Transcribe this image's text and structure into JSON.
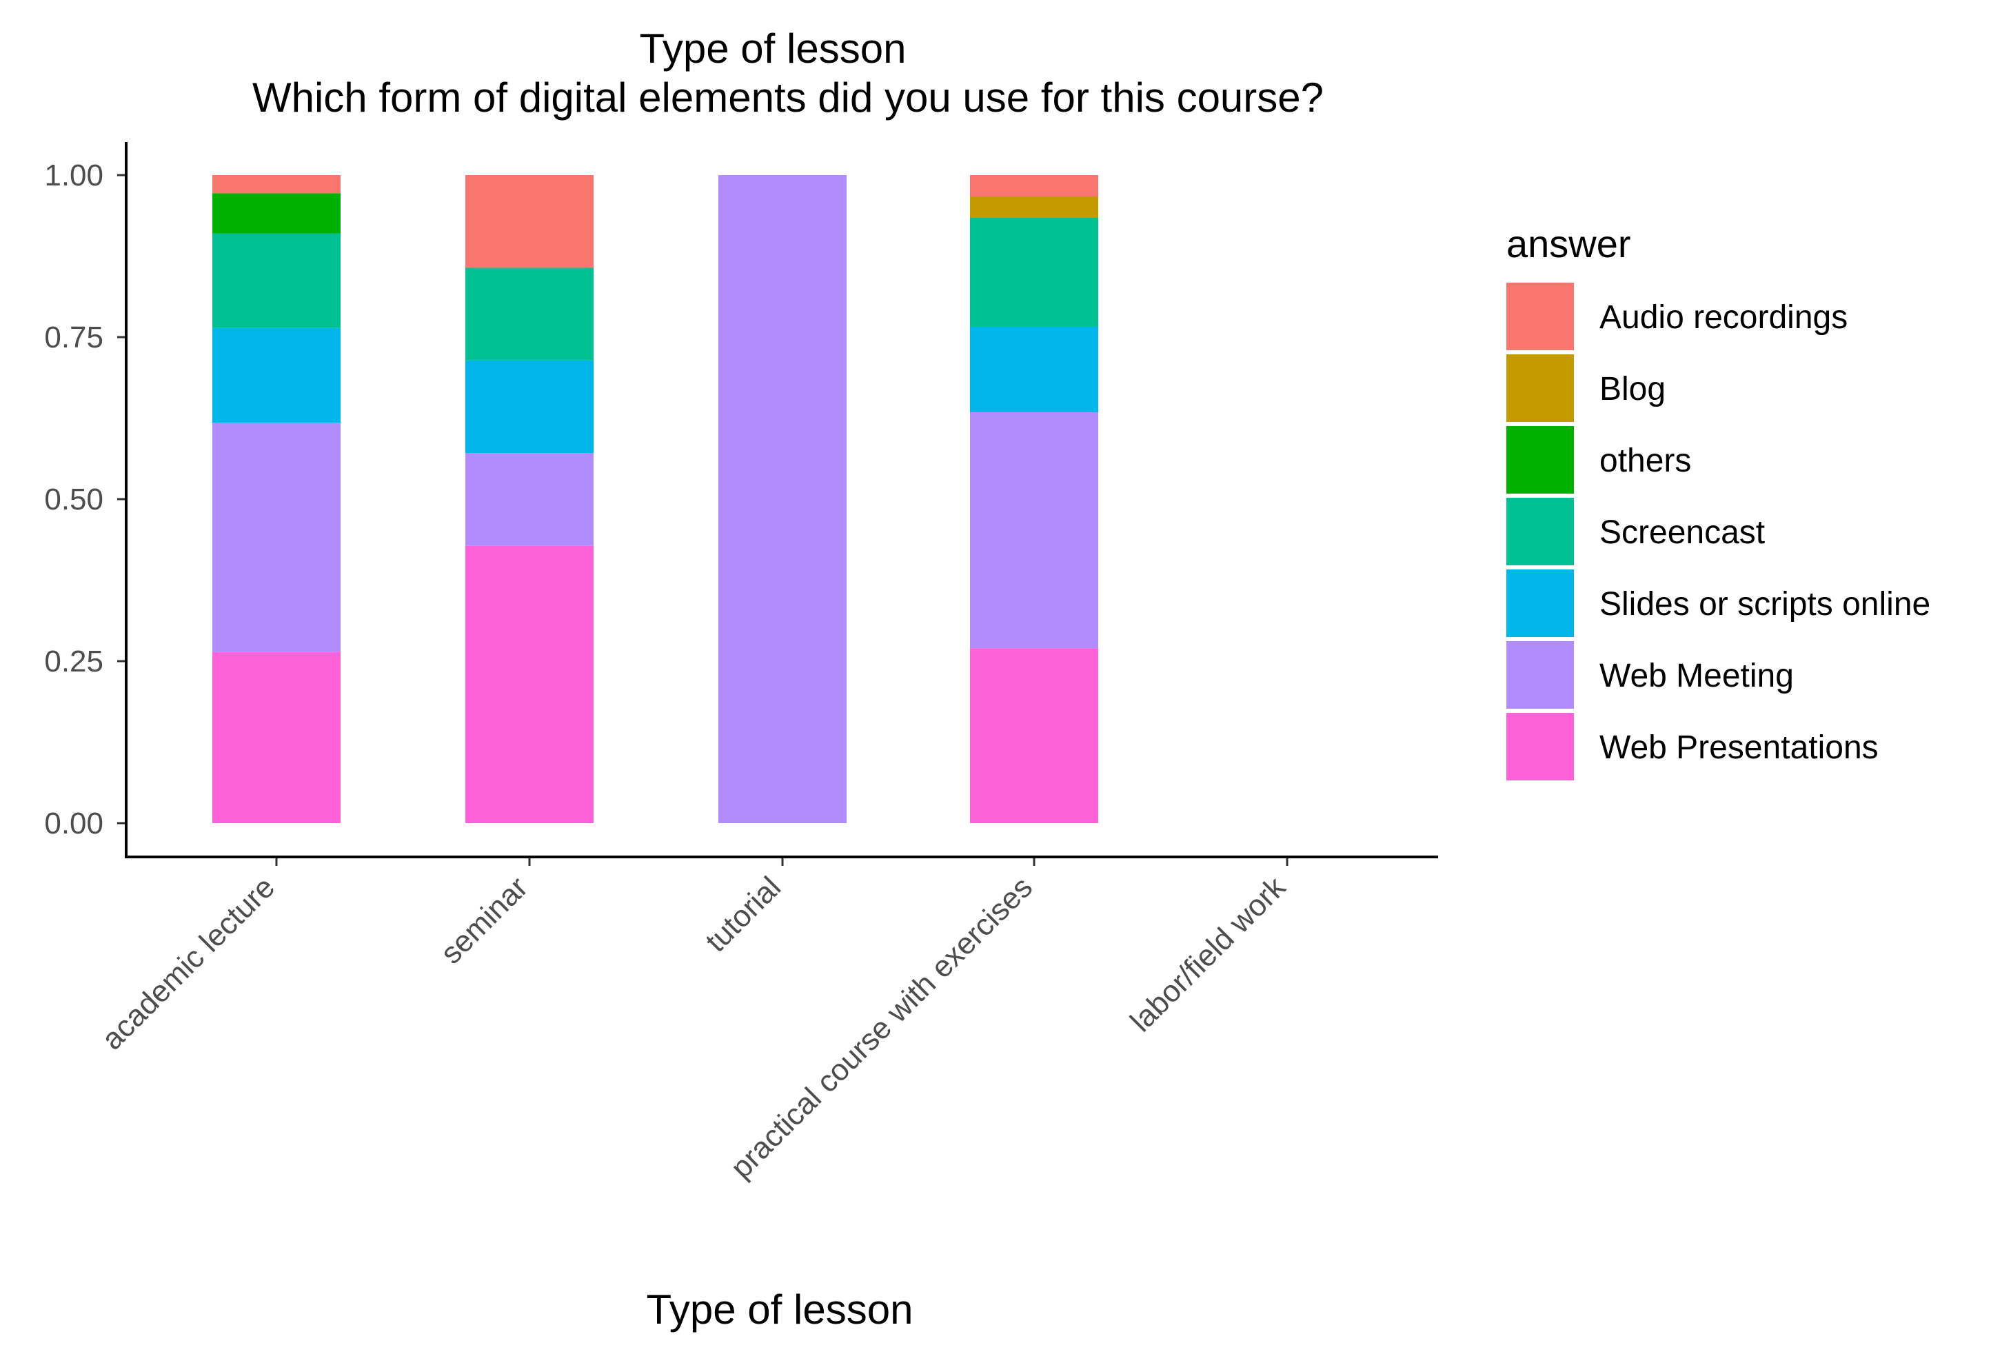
{
  "chart_data": {
    "type": "bar",
    "stacked": true,
    "title": "Type of lesson",
    "subtitle": "Which form of digital elements did you use for this course?",
    "xlabel": "Type of lesson",
    "ylabel": "",
    "ylim": [
      0,
      1
    ],
    "y_ticks": [
      "0.00",
      "0.25",
      "0.50",
      "0.75",
      "1.00"
    ],
    "categories": [
      "academic lecture",
      "seminar",
      "tutorial",
      "practical course with exercises",
      "labor/field work"
    ],
    "legend_title": "answer",
    "legend_position": "right",
    "grid": false,
    "series": [
      {
        "name": "Audio recordings",
        "color": "#F8766D",
        "values": [
          0.028,
          0.143,
          0,
          0.033,
          0
        ]
      },
      {
        "name": "Blog",
        "color": "#C49A00",
        "values": [
          0,
          0,
          0,
          0.033,
          0
        ]
      },
      {
        "name": "others",
        "color": "#00B000",
        "values": [
          0.062,
          0,
          0,
          0,
          0
        ]
      },
      {
        "name": "Screencast",
        "color": "#00C094",
        "values": [
          0.146,
          0.143,
          0,
          0.168,
          0
        ]
      },
      {
        "name": "Slides or scripts online",
        "color": "#00B6EB",
        "values": [
          0.146,
          0.143,
          0,
          0.132,
          0
        ]
      },
      {
        "name": "Web Meeting",
        "color": "#B08CFF",
        "values": [
          0.354,
          0.143,
          1.0,
          0.364,
          0
        ]
      },
      {
        "name": "Web Presentations",
        "color": "#FF61D9",
        "values": [
          0.264,
          0.428,
          0,
          0.27,
          0
        ]
      }
    ]
  }
}
